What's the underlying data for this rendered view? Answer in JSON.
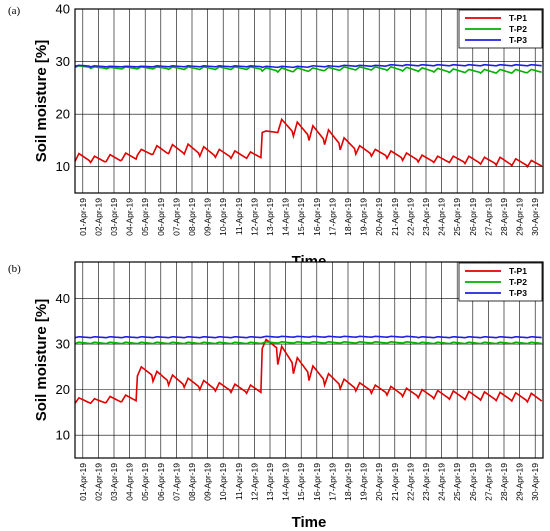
{
  "chart_data": [
    {
      "type": "line",
      "panel_label": "(a)",
      "xlabel": "Time",
      "ylabel": "Soil moisture [%]",
      "ylim": [
        5,
        40
      ],
      "yticks": [
        10,
        20,
        30,
        40
      ],
      "grid": true,
      "legend_position": "top-right",
      "x": [
        "01-Apr-19",
        "02-Apr-19",
        "03-Apr-19",
        "04-Apr-19",
        "05-Apr-19",
        "06-Apr-19",
        "07-Apr-19",
        "08-Apr-19",
        "09-Apr-19",
        "10-Apr-19",
        "11-Apr-19",
        "12-Apr-19",
        "13-Apr-19",
        "14-Apr-19",
        "15-Apr-19",
        "16-Apr-19",
        "17-Apr-19",
        "18-Apr-19",
        "19-Apr-19",
        "20-Apr-19",
        "21-Apr-19",
        "22-Apr-19",
        "23-Apr-19",
        "24-Apr-19",
        "25-Apr-19",
        "26-Apr-19",
        "27-Apr-19",
        "28-Apr-19",
        "29-Apr-19",
        "30-Apr-19"
      ],
      "series": [
        {
          "name": "T-P1",
          "color": "#e00000",
          "daily_peak": [
            12.5,
            12.0,
            12.3,
            12.6,
            13.3,
            14.0,
            14.2,
            14.3,
            13.8,
            13.3,
            13.0,
            12.8,
            16.8,
            19.0,
            18.5,
            17.8,
            17.0,
            15.5,
            14.0,
            13.3,
            13.0,
            12.6,
            12.2,
            12.0,
            12.0,
            12.0,
            11.8,
            11.8,
            11.5,
            11.2
          ],
          "daily_trough": [
            11.0,
            10.8,
            11.0,
            11.3,
            12.2,
            12.4,
            12.5,
            12.4,
            12.0,
            11.8,
            11.6,
            11.6,
            16.5,
            16.5,
            15.8,
            15.0,
            14.2,
            13.2,
            12.4,
            12.0,
            11.6,
            11.2,
            10.9,
            10.8,
            10.8,
            10.6,
            10.5,
            10.3,
            10.2,
            10.0
          ]
        },
        {
          "name": "T-P2",
          "color": "#00b000",
          "daily_peak": [
            29.2,
            29.0,
            28.9,
            29.0,
            29.0,
            29.0,
            29.0,
            29.0,
            29.0,
            29.0,
            29.0,
            29.0,
            28.8,
            28.8,
            28.8,
            28.8,
            28.9,
            29.0,
            29.0,
            29.0,
            29.0,
            28.9,
            28.8,
            28.7,
            28.6,
            28.5,
            28.5,
            28.5,
            28.5,
            28.5
          ],
          "daily_trough": [
            28.9,
            28.7,
            28.6,
            28.6,
            28.6,
            28.6,
            28.5,
            28.5,
            28.5,
            28.5,
            28.5,
            28.5,
            28.2,
            28.0,
            28.1,
            28.2,
            28.3,
            28.4,
            28.4,
            28.4,
            28.3,
            28.2,
            28.1,
            28.0,
            27.9,
            27.9,
            27.8,
            27.8,
            27.8,
            27.9
          ]
        },
        {
          "name": "T-P3",
          "color": "#2020e0",
          "daily_peak": [
            29.3,
            29.2,
            29.1,
            29.1,
            29.1,
            29.2,
            29.2,
            29.2,
            29.2,
            29.2,
            29.2,
            29.2,
            29.1,
            29.1,
            29.1,
            29.2,
            29.2,
            29.3,
            29.3,
            29.3,
            29.4,
            29.4,
            29.4,
            29.4,
            29.4,
            29.4,
            29.4,
            29.4,
            29.4,
            29.4
          ],
          "daily_trough": [
            29.1,
            29.0,
            29.0,
            29.0,
            29.0,
            29.0,
            29.0,
            29.0,
            29.0,
            29.0,
            29.0,
            29.0,
            28.9,
            28.9,
            28.9,
            29.0,
            29.0,
            29.1,
            29.1,
            29.1,
            29.2,
            29.2,
            29.2,
            29.2,
            29.2,
            29.2,
            29.2,
            29.2,
            29.2,
            29.2
          ]
        }
      ]
    },
    {
      "type": "line",
      "panel_label": "(b)",
      "xlabel": "Time",
      "ylabel": "Soil moisture [%]",
      "ylim": [
        5,
        48
      ],
      "yticks": [
        10,
        20,
        30,
        40
      ],
      "grid": true,
      "legend_position": "top-right",
      "x": [
        "01-Apr-19",
        "02-Apr-19",
        "03-Apr-19",
        "04-Apr-19",
        "05-Apr-19",
        "06-Apr-19",
        "07-Apr-19",
        "08-Apr-19",
        "09-Apr-19",
        "10-Apr-19",
        "11-Apr-19",
        "12-Apr-19",
        "13-Apr-19",
        "14-Apr-19",
        "15-Apr-19",
        "16-Apr-19",
        "17-Apr-19",
        "18-Apr-19",
        "19-Apr-19",
        "20-Apr-19",
        "21-Apr-19",
        "22-Apr-19",
        "23-Apr-19",
        "24-Apr-19",
        "25-Apr-19",
        "26-Apr-19",
        "27-Apr-19",
        "28-Apr-19",
        "29-Apr-19",
        "30-Apr-19"
      ],
      "series": [
        {
          "name": "T-P1",
          "color": "#e00000",
          "daily_peak": [
            18.2,
            18.0,
            18.5,
            18.8,
            25.0,
            24.0,
            23.2,
            22.5,
            22.0,
            21.5,
            21.2,
            21.0,
            31.0,
            29.5,
            27.0,
            25.2,
            23.5,
            22.3,
            21.5,
            21.0,
            20.7,
            20.3,
            20.0,
            19.8,
            19.7,
            19.6,
            19.5,
            19.4,
            19.3,
            19.2
          ],
          "daily_trough": [
            17.0,
            17.0,
            17.2,
            17.4,
            23.0,
            21.8,
            21.0,
            20.5,
            20.0,
            19.7,
            19.4,
            19.2,
            29.0,
            25.5,
            23.5,
            22.0,
            21.0,
            20.2,
            19.7,
            19.2,
            18.8,
            18.5,
            18.2,
            18.0,
            17.9,
            17.8,
            17.7,
            17.6,
            17.5,
            17.3
          ]
        },
        {
          "name": "T-P2",
          "color": "#00b000",
          "daily_peak": [
            30.4,
            30.4,
            30.4,
            30.4,
            30.4,
            30.4,
            30.4,
            30.4,
            30.4,
            30.4,
            30.4,
            30.4,
            30.5,
            30.5,
            30.5,
            30.5,
            30.5,
            30.5,
            30.5,
            30.5,
            30.5,
            30.5,
            30.4,
            30.4,
            30.4,
            30.4,
            30.4,
            30.4,
            30.4,
            30.4
          ],
          "daily_trough": [
            30.1,
            30.1,
            30.1,
            30.1,
            30.1,
            30.1,
            30.1,
            30.1,
            30.1,
            30.1,
            30.1,
            30.1,
            30.2,
            30.2,
            30.2,
            30.2,
            30.2,
            30.2,
            30.2,
            30.2,
            30.2,
            30.2,
            30.1,
            30.1,
            30.1,
            30.1,
            30.1,
            30.1,
            30.1,
            30.1
          ]
        },
        {
          "name": "T-P3",
          "color": "#2020e0",
          "daily_peak": [
            31.6,
            31.6,
            31.6,
            31.6,
            31.6,
            31.6,
            31.6,
            31.6,
            31.6,
            31.6,
            31.6,
            31.6,
            31.7,
            31.7,
            31.7,
            31.7,
            31.7,
            31.7,
            31.7,
            31.7,
            31.7,
            31.7,
            31.6,
            31.6,
            31.6,
            31.6,
            31.6,
            31.6,
            31.6,
            31.6
          ],
          "daily_trough": [
            31.4,
            31.4,
            31.4,
            31.4,
            31.4,
            31.4,
            31.4,
            31.4,
            31.4,
            31.4,
            31.4,
            31.4,
            31.5,
            31.5,
            31.5,
            31.5,
            31.5,
            31.5,
            31.5,
            31.5,
            31.5,
            31.5,
            31.4,
            31.4,
            31.4,
            31.4,
            31.4,
            31.4,
            31.4,
            31.4
          ]
        }
      ]
    }
  ]
}
